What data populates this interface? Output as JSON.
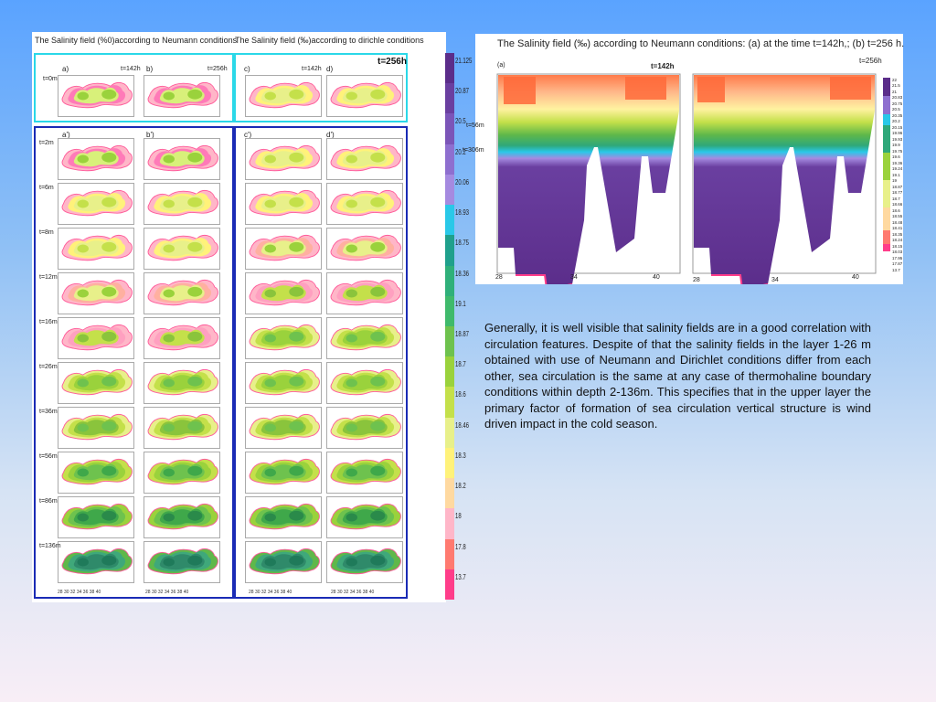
{
  "left_figure": {
    "title_neumann": "The Salinity field  (%0)according to Neumann conditions",
    "title_dirichlet": "The Salinity field (‰)according to dirichle  conditions",
    "time_label": "t=256h",
    "panel_a": "a)",
    "panel_b": "b)",
    "panel_c": "c)",
    "panel_d": "d)",
    "panel_a2": "a')",
    "panel_b2": "b')",
    "panel_c2": "c')",
    "panel_d2": "d')",
    "time_142": "t=142h",
    "time_256": "t=256h",
    "top_depth": "t=0m",
    "depths": [
      "t=2m",
      "t=6m",
      "t=8m",
      "t=12m",
      "t=16m",
      "t=26m",
      "t=36m",
      "t=56m",
      "t=86m",
      "t=136m"
    ],
    "x_ticks": "28   30   32   34   36   38   40",
    "colorbar_labels": [
      "21.125",
      "20.87",
      "20.5",
      "20.2",
      "20.06",
      "18.93",
      "18.75",
      "18.36",
      "19.1",
      "18.87",
      "18.7",
      "18.6",
      "18.46",
      "18.3",
      "18.2",
      "18",
      "17.8",
      "13.7"
    ],
    "colorbar_colors": [
      "#5b2d8a",
      "#6a3fa0",
      "#7b55b8",
      "#8e6fcf",
      "#a58ae0",
      "#29c8e8",
      "#1fa08c",
      "#2fb07a",
      "#3fba6c",
      "#6ec24e",
      "#9ad23c",
      "#c4e04a",
      "#e8f08a",
      "#fff27a",
      "#ffd9a0",
      "#ffb6c8",
      "#ff7a70",
      "#ff3d8a"
    ]
  },
  "right_figure": {
    "title": "The Salinity field (‰)  according to Neumann   conditions:  (a) at the time t=142h,; (b) t=256 h.",
    "time_right": "t=256h",
    "panel_a": "(a)",
    "time_142": "t=142h",
    "depth_56": "t=56m",
    "depth_306": "t=306m",
    "x_ticks_a": [
      "28",
      "34",
      "40"
    ],
    "x_ticks_b": [
      "28",
      "34",
      "40"
    ],
    "colorbar_labels": [
      "22",
      "21.5",
      "21",
      "20.83",
      "20.75",
      "20.5",
      "20.35",
      "20.2",
      "20.15",
      "19.96",
      "19.93",
      "19.9",
      "19.75",
      "19.6",
      "19.36",
      "19.24",
      "19.1",
      "19",
      "18.87",
      "18.77",
      "18.7",
      "18.66",
      "18.6",
      "18.55",
      "18.48",
      "18.41",
      "18.35",
      "18.24",
      "18.15",
      "18.03",
      "17.95",
      "17.87",
      "13.7"
    ]
  },
  "paragraph": "Generally, it is well visible that salinity fields are in a good correlation with circulation features. Despite of that the salinity fields in the layer 1-26 m obtained with use of Neumann and Dirichlet conditions differ from each other, sea circulation is the same at any case of thermohaline boundary conditions within depth 2-136m. This specifies that in the upper layer the primary factor of formation of sea circulation vertical structure is wind driven impact in the cold season."
}
